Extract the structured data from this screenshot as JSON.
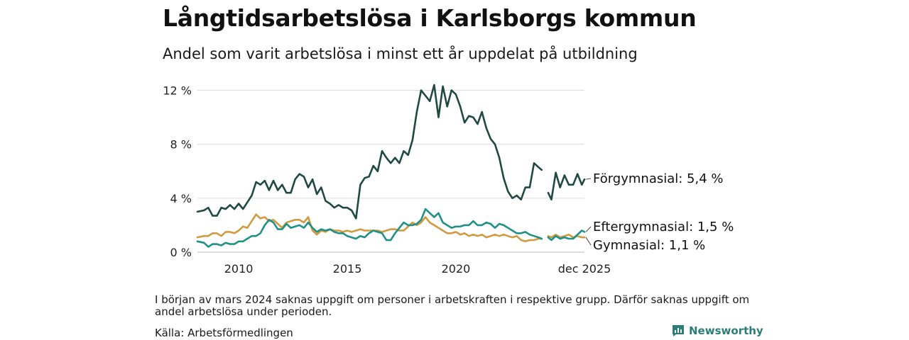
{
  "title": "Långtidsarbetslösa i Karlsborgs kommun",
  "subtitle": "Andel som varit arbetslösa i minst ett år uppdelat på utbildning",
  "note": "I början av mars 2024 saknas uppgift om personer i arbetskraften i respektive grupp. Därför saknas uppgift om andel arbetslösa under perioden.",
  "source": "Källa: Arbetsförmedlingen",
  "brand": "Newsworthy",
  "chart_data": {
    "type": "line",
    "title": "Långtidsarbetslösa i Karlsborgs kommun",
    "ylabel": "",
    "xlabel": "",
    "ylim": [
      0,
      12.5
    ],
    "xlim": [
      2008.1,
      2025.92
    ],
    "y_ticks": [
      {
        "value": 0,
        "label": "0 %"
      },
      {
        "value": 4,
        "label": "4 %"
      },
      {
        "value": 8,
        "label": "8 %"
      },
      {
        "value": 12,
        "label": "12 %"
      }
    ],
    "x_ticks": [
      {
        "value": 2010,
        "label": "2010"
      },
      {
        "value": 2015,
        "label": "2015"
      },
      {
        "value": 2020,
        "label": "2020"
      },
      {
        "value": 2025.92,
        "label": "dec 2025"
      }
    ],
    "gap": [
      2024.0,
      2024.25
    ],
    "series": [
      {
        "name": "Förgymnasial",
        "label": "Förgymnasial: 5,4 %",
        "color": "#1f4a42",
        "points": [
          [
            2008.1,
            3.0
          ],
          [
            2008.4,
            3.1
          ],
          [
            2008.6,
            3.3
          ],
          [
            2008.8,
            2.7
          ],
          [
            2009.0,
            2.7
          ],
          [
            2009.2,
            3.3
          ],
          [
            2009.4,
            3.2
          ],
          [
            2009.6,
            3.5
          ],
          [
            2009.8,
            3.2
          ],
          [
            2010.0,
            3.6
          ],
          [
            2010.2,
            3.2
          ],
          [
            2010.4,
            3.7
          ],
          [
            2010.6,
            4.2
          ],
          [
            2010.8,
            5.2
          ],
          [
            2011.0,
            5.0
          ],
          [
            2011.2,
            5.3
          ],
          [
            2011.4,
            4.6
          ],
          [
            2011.6,
            5.3
          ],
          [
            2011.8,
            4.6
          ],
          [
            2012.0,
            5.0
          ],
          [
            2012.2,
            4.4
          ],
          [
            2012.4,
            4.4
          ],
          [
            2012.6,
            5.4
          ],
          [
            2012.8,
            5.8
          ],
          [
            2013.0,
            5.6
          ],
          [
            2013.2,
            4.8
          ],
          [
            2013.4,
            5.4
          ],
          [
            2013.6,
            4.3
          ],
          [
            2013.8,
            4.8
          ],
          [
            2014.0,
            3.8
          ],
          [
            2014.2,
            3.6
          ],
          [
            2014.4,
            3.3
          ],
          [
            2014.6,
            3.5
          ],
          [
            2014.8,
            3.3
          ],
          [
            2015.0,
            3.3
          ],
          [
            2015.2,
            3.1
          ],
          [
            2015.4,
            2.5
          ],
          [
            2015.6,
            5.0
          ],
          [
            2015.8,
            5.5
          ],
          [
            2016.0,
            5.6
          ],
          [
            2016.2,
            6.4
          ],
          [
            2016.4,
            6.0
          ],
          [
            2016.6,
            7.5
          ],
          [
            2016.8,
            7.0
          ],
          [
            2017.0,
            6.6
          ],
          [
            2017.2,
            7.0
          ],
          [
            2017.4,
            6.6
          ],
          [
            2017.6,
            7.5
          ],
          [
            2017.8,
            7.2
          ],
          [
            2018.0,
            8.3
          ],
          [
            2018.2,
            10.4
          ],
          [
            2018.4,
            12.0
          ],
          [
            2018.6,
            11.6
          ],
          [
            2018.8,
            11.2
          ],
          [
            2019.0,
            12.4
          ],
          [
            2019.2,
            10.0
          ],
          [
            2019.4,
            12.3
          ],
          [
            2019.6,
            10.8
          ],
          [
            2019.8,
            12.0
          ],
          [
            2020.0,
            11.7
          ],
          [
            2020.2,
            10.8
          ],
          [
            2020.4,
            9.6
          ],
          [
            2020.6,
            10.1
          ],
          [
            2020.8,
            10.0
          ],
          [
            2021.0,
            9.5
          ],
          [
            2021.2,
            10.4
          ],
          [
            2021.4,
            9.2
          ],
          [
            2021.6,
            8.4
          ],
          [
            2021.8,
            8.0
          ],
          [
            2022.0,
            7.0
          ],
          [
            2022.2,
            5.5
          ],
          [
            2022.4,
            4.5
          ],
          [
            2022.6,
            4.0
          ],
          [
            2022.8,
            4.2
          ],
          [
            2023.0,
            3.9
          ],
          [
            2023.2,
            4.8
          ],
          [
            2023.4,
            4.8
          ],
          [
            2023.6,
            6.6
          ],
          [
            2023.8,
            6.3
          ],
          [
            2023.95,
            6.1
          ],
          null,
          [
            2024.25,
            4.4
          ],
          [
            2024.4,
            3.9
          ],
          [
            2024.6,
            5.9
          ],
          [
            2024.8,
            4.8
          ],
          [
            2025.0,
            5.7
          ],
          [
            2025.2,
            5.0
          ],
          [
            2025.4,
            5.0
          ],
          [
            2025.6,
            5.8
          ],
          [
            2025.8,
            5.0
          ],
          [
            2025.92,
            5.4
          ]
        ]
      },
      {
        "name": "Eftergymnasial",
        "label": "Eftergymnasial: 1,5 %",
        "color": "#1f9188",
        "points": [
          [
            2008.1,
            0.8
          ],
          [
            2008.4,
            0.7
          ],
          [
            2008.6,
            0.4
          ],
          [
            2008.8,
            0.6
          ],
          [
            2009.0,
            0.6
          ],
          [
            2009.2,
            0.5
          ],
          [
            2009.4,
            0.7
          ],
          [
            2009.6,
            0.6
          ],
          [
            2009.8,
            0.6
          ],
          [
            2010.0,
            0.8
          ],
          [
            2010.2,
            0.8
          ],
          [
            2010.4,
            1.0
          ],
          [
            2010.6,
            1.2
          ],
          [
            2010.8,
            1.2
          ],
          [
            2011.0,
            1.4
          ],
          [
            2011.2,
            2.0
          ],
          [
            2011.4,
            2.4
          ],
          [
            2011.6,
            2.2
          ],
          [
            2011.8,
            1.7
          ],
          [
            2012.0,
            1.7
          ],
          [
            2012.2,
            2.1
          ],
          [
            2012.4,
            1.8
          ],
          [
            2012.6,
            1.9
          ],
          [
            2012.8,
            2.0
          ],
          [
            2013.0,
            1.8
          ],
          [
            2013.2,
            2.2
          ],
          [
            2013.4,
            1.8
          ],
          [
            2013.6,
            1.5
          ],
          [
            2013.8,
            1.7
          ],
          [
            2014.0,
            1.6
          ],
          [
            2014.2,
            1.7
          ],
          [
            2014.4,
            1.5
          ],
          [
            2014.6,
            1.4
          ],
          [
            2014.8,
            1.4
          ],
          [
            2015.0,
            1.2
          ],
          [
            2015.2,
            1.1
          ],
          [
            2015.4,
            1.0
          ],
          [
            2015.6,
            1.2
          ],
          [
            2015.8,
            1.1
          ],
          [
            2016.0,
            1.4
          ],
          [
            2016.2,
            1.6
          ],
          [
            2016.4,
            1.5
          ],
          [
            2016.6,
            1.4
          ],
          [
            2016.8,
            0.9
          ],
          [
            2017.0,
            0.9
          ],
          [
            2017.2,
            1.4
          ],
          [
            2017.4,
            1.8
          ],
          [
            2017.6,
            2.2
          ],
          [
            2017.8,
            2.0
          ],
          [
            2018.0,
            2.0
          ],
          [
            2018.2,
            2.1
          ],
          [
            2018.4,
            2.4
          ],
          [
            2018.6,
            3.2
          ],
          [
            2018.8,
            2.9
          ],
          [
            2019.0,
            2.6
          ],
          [
            2019.2,
            2.9
          ],
          [
            2019.4,
            2.2
          ],
          [
            2019.6,
            2.0
          ],
          [
            2019.8,
            1.8
          ],
          [
            2020.0,
            1.9
          ],
          [
            2020.2,
            1.9
          ],
          [
            2020.4,
            2.0
          ],
          [
            2020.6,
            2.0
          ],
          [
            2020.8,
            2.3
          ],
          [
            2021.0,
            2.0
          ],
          [
            2021.2,
            2.0
          ],
          [
            2021.4,
            2.2
          ],
          [
            2021.6,
            2.1
          ],
          [
            2021.8,
            1.8
          ],
          [
            2022.0,
            2.1
          ],
          [
            2022.2,
            2.0
          ],
          [
            2022.4,
            1.8
          ],
          [
            2022.6,
            1.6
          ],
          [
            2022.8,
            1.4
          ],
          [
            2023.0,
            1.4
          ],
          [
            2023.2,
            1.5
          ],
          [
            2023.4,
            1.3
          ],
          [
            2023.6,
            1.2
          ],
          [
            2023.8,
            1.1
          ],
          [
            2023.95,
            1.0
          ],
          null,
          [
            2024.25,
            1.1
          ],
          [
            2024.4,
            0.9
          ],
          [
            2024.6,
            1.2
          ],
          [
            2024.8,
            1.0
          ],
          [
            2025.0,
            1.1
          ],
          [
            2025.2,
            1.0
          ],
          [
            2025.4,
            1.0
          ],
          [
            2025.6,
            1.3
          ],
          [
            2025.8,
            1.6
          ],
          [
            2025.92,
            1.5
          ]
        ]
      },
      {
        "name": "Gymnasial",
        "label": "Gymnasial: 1,1 %",
        "color": "#d19a3f",
        "points": [
          [
            2008.1,
            1.1
          ],
          [
            2008.4,
            1.2
          ],
          [
            2008.6,
            1.2
          ],
          [
            2008.8,
            1.4
          ],
          [
            2009.0,
            1.4
          ],
          [
            2009.2,
            1.2
          ],
          [
            2009.4,
            1.5
          ],
          [
            2009.6,
            1.5
          ],
          [
            2009.8,
            1.4
          ],
          [
            2010.0,
            1.6
          ],
          [
            2010.2,
            1.9
          ],
          [
            2010.4,
            1.8
          ],
          [
            2010.6,
            2.3
          ],
          [
            2010.8,
            2.8
          ],
          [
            2011.0,
            2.5
          ],
          [
            2011.2,
            2.6
          ],
          [
            2011.4,
            2.3
          ],
          [
            2011.6,
            2.4
          ],
          [
            2011.8,
            2.1
          ],
          [
            2012.0,
            1.8
          ],
          [
            2012.2,
            2.2
          ],
          [
            2012.4,
            2.3
          ],
          [
            2012.6,
            2.4
          ],
          [
            2012.8,
            2.4
          ],
          [
            2013.0,
            2.2
          ],
          [
            2013.2,
            2.6
          ],
          [
            2013.4,
            1.6
          ],
          [
            2013.6,
            1.3
          ],
          [
            2013.8,
            1.6
          ],
          [
            2014.0,
            1.5
          ],
          [
            2014.2,
            1.7
          ],
          [
            2014.4,
            1.6
          ],
          [
            2014.6,
            1.6
          ],
          [
            2014.8,
            1.5
          ],
          [
            2015.0,
            1.6
          ],
          [
            2015.2,
            1.5
          ],
          [
            2015.4,
            1.6
          ],
          [
            2015.6,
            1.7
          ],
          [
            2015.8,
            1.6
          ],
          [
            2016.0,
            1.6
          ],
          [
            2016.2,
            1.6
          ],
          [
            2016.4,
            1.6
          ],
          [
            2016.6,
            1.5
          ],
          [
            2016.8,
            1.6
          ],
          [
            2017.0,
            1.7
          ],
          [
            2017.2,
            1.7
          ],
          [
            2017.4,
            1.6
          ],
          [
            2017.6,
            1.6
          ],
          [
            2017.8,
            1.9
          ],
          [
            2018.0,
            2.2
          ],
          [
            2018.2,
            2.0
          ],
          [
            2018.4,
            2.2
          ],
          [
            2018.6,
            2.6
          ],
          [
            2018.8,
            2.2
          ],
          [
            2019.0,
            2.0
          ],
          [
            2019.2,
            1.8
          ],
          [
            2019.4,
            1.6
          ],
          [
            2019.6,
            1.4
          ],
          [
            2019.8,
            1.4
          ],
          [
            2020.0,
            1.5
          ],
          [
            2020.2,
            1.3
          ],
          [
            2020.4,
            1.4
          ],
          [
            2020.6,
            1.2
          ],
          [
            2020.8,
            1.3
          ],
          [
            2021.0,
            1.2
          ],
          [
            2021.2,
            1.3
          ],
          [
            2021.4,
            1.1
          ],
          [
            2021.6,
            1.2
          ],
          [
            2021.8,
            1.3
          ],
          [
            2022.0,
            1.2
          ],
          [
            2022.2,
            1.3
          ],
          [
            2022.4,
            1.2
          ],
          [
            2022.6,
            1.1
          ],
          [
            2022.8,
            1.2
          ],
          [
            2023.0,
            0.9
          ],
          [
            2023.2,
            0.8
          ],
          [
            2023.4,
            0.9
          ],
          [
            2023.6,
            0.9
          ],
          [
            2023.8,
            1.0
          ],
          [
            2023.95,
            1.0
          ],
          null,
          [
            2024.25,
            1.2
          ],
          [
            2024.4,
            1.1
          ],
          [
            2024.6,
            1.3
          ],
          [
            2024.8,
            1.1
          ],
          [
            2025.0,
            1.2
          ],
          [
            2025.2,
            1.3
          ],
          [
            2025.4,
            1.1
          ],
          [
            2025.6,
            1.2
          ],
          [
            2025.8,
            1.1
          ],
          [
            2025.92,
            1.1
          ]
        ]
      }
    ]
  }
}
